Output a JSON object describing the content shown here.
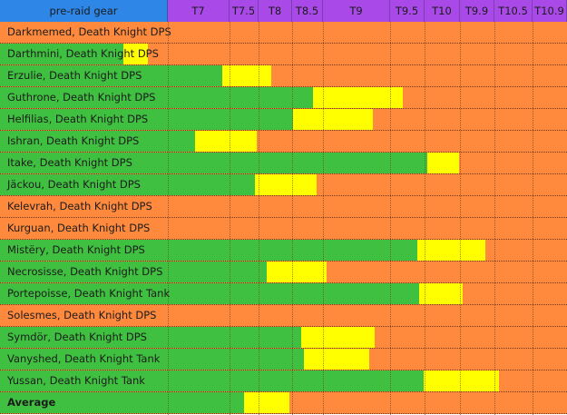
{
  "chart_data": {
    "type": "bar",
    "orientation": "horizontal-stacked-range",
    "header_label": "pre-raid gear",
    "tiers": [
      "T7",
      "T7.5",
      "T8",
      "T8.5",
      "T9",
      "T9.5",
      "T10",
      "T9.9",
      "T10.5",
      "T10.9"
    ],
    "colors": {
      "header_label": "#2e86e6",
      "header_tier": "#a94ae8",
      "background": "#ff8a3d",
      "green": "#40c040",
      "yellow": "#ffff00"
    },
    "rows": [
      {
        "label": "Darkmemed, Death Knight DPS",
        "green_end": 0.0,
        "yellow_end": 0.0
      },
      {
        "label": "Darthmini, Death Knight DPS",
        "green_end": -0.72,
        "yellow_end": -0.32
      },
      {
        "label": "Erzulie, Death Knight DPS",
        "green_end": 0.88,
        "yellow_end": 2.37
      },
      {
        "label": "Guthrone, Death Knight DPS",
        "green_end": 3.67,
        "yellow_end": 5.37
      },
      {
        "label": "Helfilias, Death Knight DPS",
        "green_end": 3.03,
        "yellow_end": 4.74
      },
      {
        "label": "Ishran, Death Knight DPS",
        "green_end": 0.44,
        "yellow_end": 1.94
      },
      {
        "label": "Itake, Death Knight DPS",
        "green_end": 6.07,
        "yellow_end": 6.97
      },
      {
        "label": "Jäckou, Death Knight DPS",
        "green_end": 1.87,
        "yellow_end": 3.79
      },
      {
        "label": "Kelevrah, Death Knight DPS",
        "green_end": 0.0,
        "yellow_end": 0.0
      },
      {
        "label": "Kurguan, Death Knight DPS",
        "green_end": 0.0,
        "yellow_end": 0.0
      },
      {
        "label": "Mistëry, Death Knight DPS",
        "green_end": 5.78,
        "yellow_end": 7.73
      },
      {
        "label": "Necrosisse, Death Knight DPS",
        "green_end": 2.25,
        "yellow_end": 4.05
      },
      {
        "label": "Portepoisse, Death Knight Tank",
        "green_end": 5.84,
        "yellow_end": 7.09
      },
      {
        "label": "Solesmes, Death Knight DPS",
        "green_end": 0.0,
        "yellow_end": 0.0
      },
      {
        "label": "Symdör, Death Knight DPS",
        "green_end": 3.28,
        "yellow_end": 4.77
      },
      {
        "label": "Vanyshed, Death Knight Tank",
        "green_end": 3.38,
        "yellow_end": 4.69
      },
      {
        "label": "Yussan, Death Knight Tank",
        "green_end": 5.97,
        "yellow_end": 8.13
      },
      {
        "label": "Average",
        "green_end": 1.5,
        "yellow_end": 2.91,
        "bold": true
      }
    ]
  }
}
